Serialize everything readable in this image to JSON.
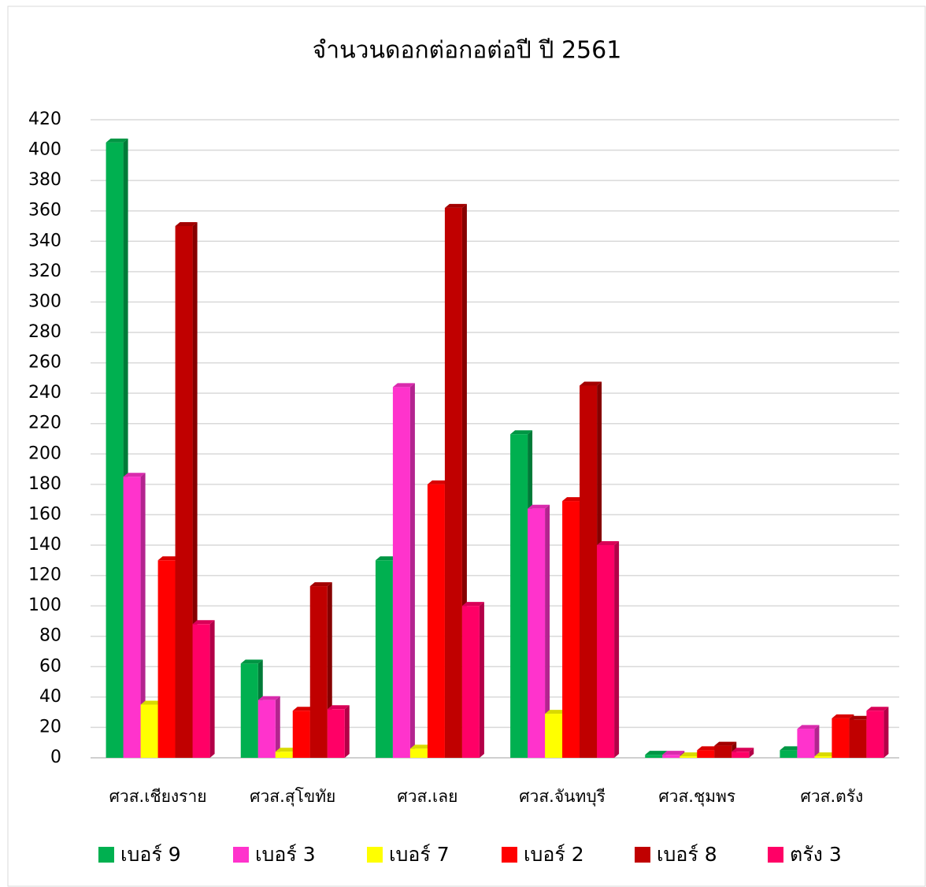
{
  "chart_data": {
    "type": "bar3d",
    "title": "จำนวนดอกต่อกอต่อปี  ปี 2561",
    "categories": [
      "ศวส.เชียงราย",
      "ศวส.สุโขทัย",
      "ศวส.เลย",
      "ศวส.จันทบุรี",
      "ศวส.ชุมพร",
      "ศวส.ตรัง"
    ],
    "series": [
      {
        "name": "เบอร์ 9",
        "color": "#00b050",
        "values": [
          405,
          62,
          130,
          213,
          2,
          5
        ]
      },
      {
        "name": "เบอร์ 3",
        "color": "#ff33cc",
        "values": [
          185,
          38,
          244,
          164,
          2,
          19
        ]
      },
      {
        "name": "เบอร์ 7",
        "color": "#ffff00",
        "values": [
          35,
          4,
          6,
          29,
          1,
          1
        ]
      },
      {
        "name": "เบอร์ 2",
        "color": "#ff0000",
        "values": [
          130,
          31,
          180,
          169,
          5,
          26
        ]
      },
      {
        "name": "เบอร์ 8",
        "color": "#c00000",
        "values": [
          350,
          113,
          362,
          245,
          8,
          25
        ]
      },
      {
        "name": "ตรัง 3",
        "color": "#ff0066",
        "values": [
          88,
          32,
          100,
          140,
          4,
          31
        ]
      }
    ],
    "ylim": [
      0,
      420
    ],
    "yticks": [
      0,
      20,
      40,
      60,
      80,
      100,
      120,
      140,
      160,
      180,
      200,
      220,
      240,
      260,
      280,
      300,
      320,
      340,
      360,
      380,
      400,
      420
    ],
    "grid": true,
    "legend": "bottom"
  }
}
